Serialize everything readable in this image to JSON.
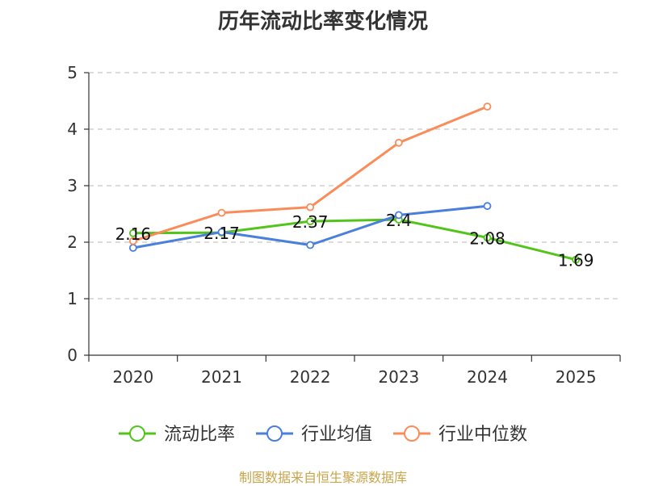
{
  "chart_data": {
    "type": "line",
    "title": "历年流动比率变化情况",
    "categories": [
      "2020",
      "2021",
      "2022",
      "2023",
      "2024",
      "2025"
    ],
    "ylim": [
      0,
      5
    ],
    "yticks": [
      0,
      1,
      2,
      3,
      4,
      5
    ],
    "grid": true,
    "legend_position": "bottom",
    "series": [
      {
        "name": "流动比率",
        "color": "#52c41a",
        "values": [
          2.16,
          2.17,
          2.37,
          2.4,
          2.08,
          1.69
        ],
        "labels": [
          "2.16",
          "2.17",
          "2.37",
          "2.4",
          "2.08",
          "1.69"
        ]
      },
      {
        "name": "行业均值",
        "color": "#4a7fdc",
        "values": [
          1.9,
          2.18,
          1.95,
          2.48,
          2.64,
          null
        ]
      },
      {
        "name": "行业中位数",
        "color": "#fa8c5a",
        "values": [
          2.02,
          2.52,
          2.62,
          3.76,
          4.4,
          null
        ]
      }
    ]
  },
  "footer": {
    "source": "制图数据来自恒生聚源数据库"
  }
}
